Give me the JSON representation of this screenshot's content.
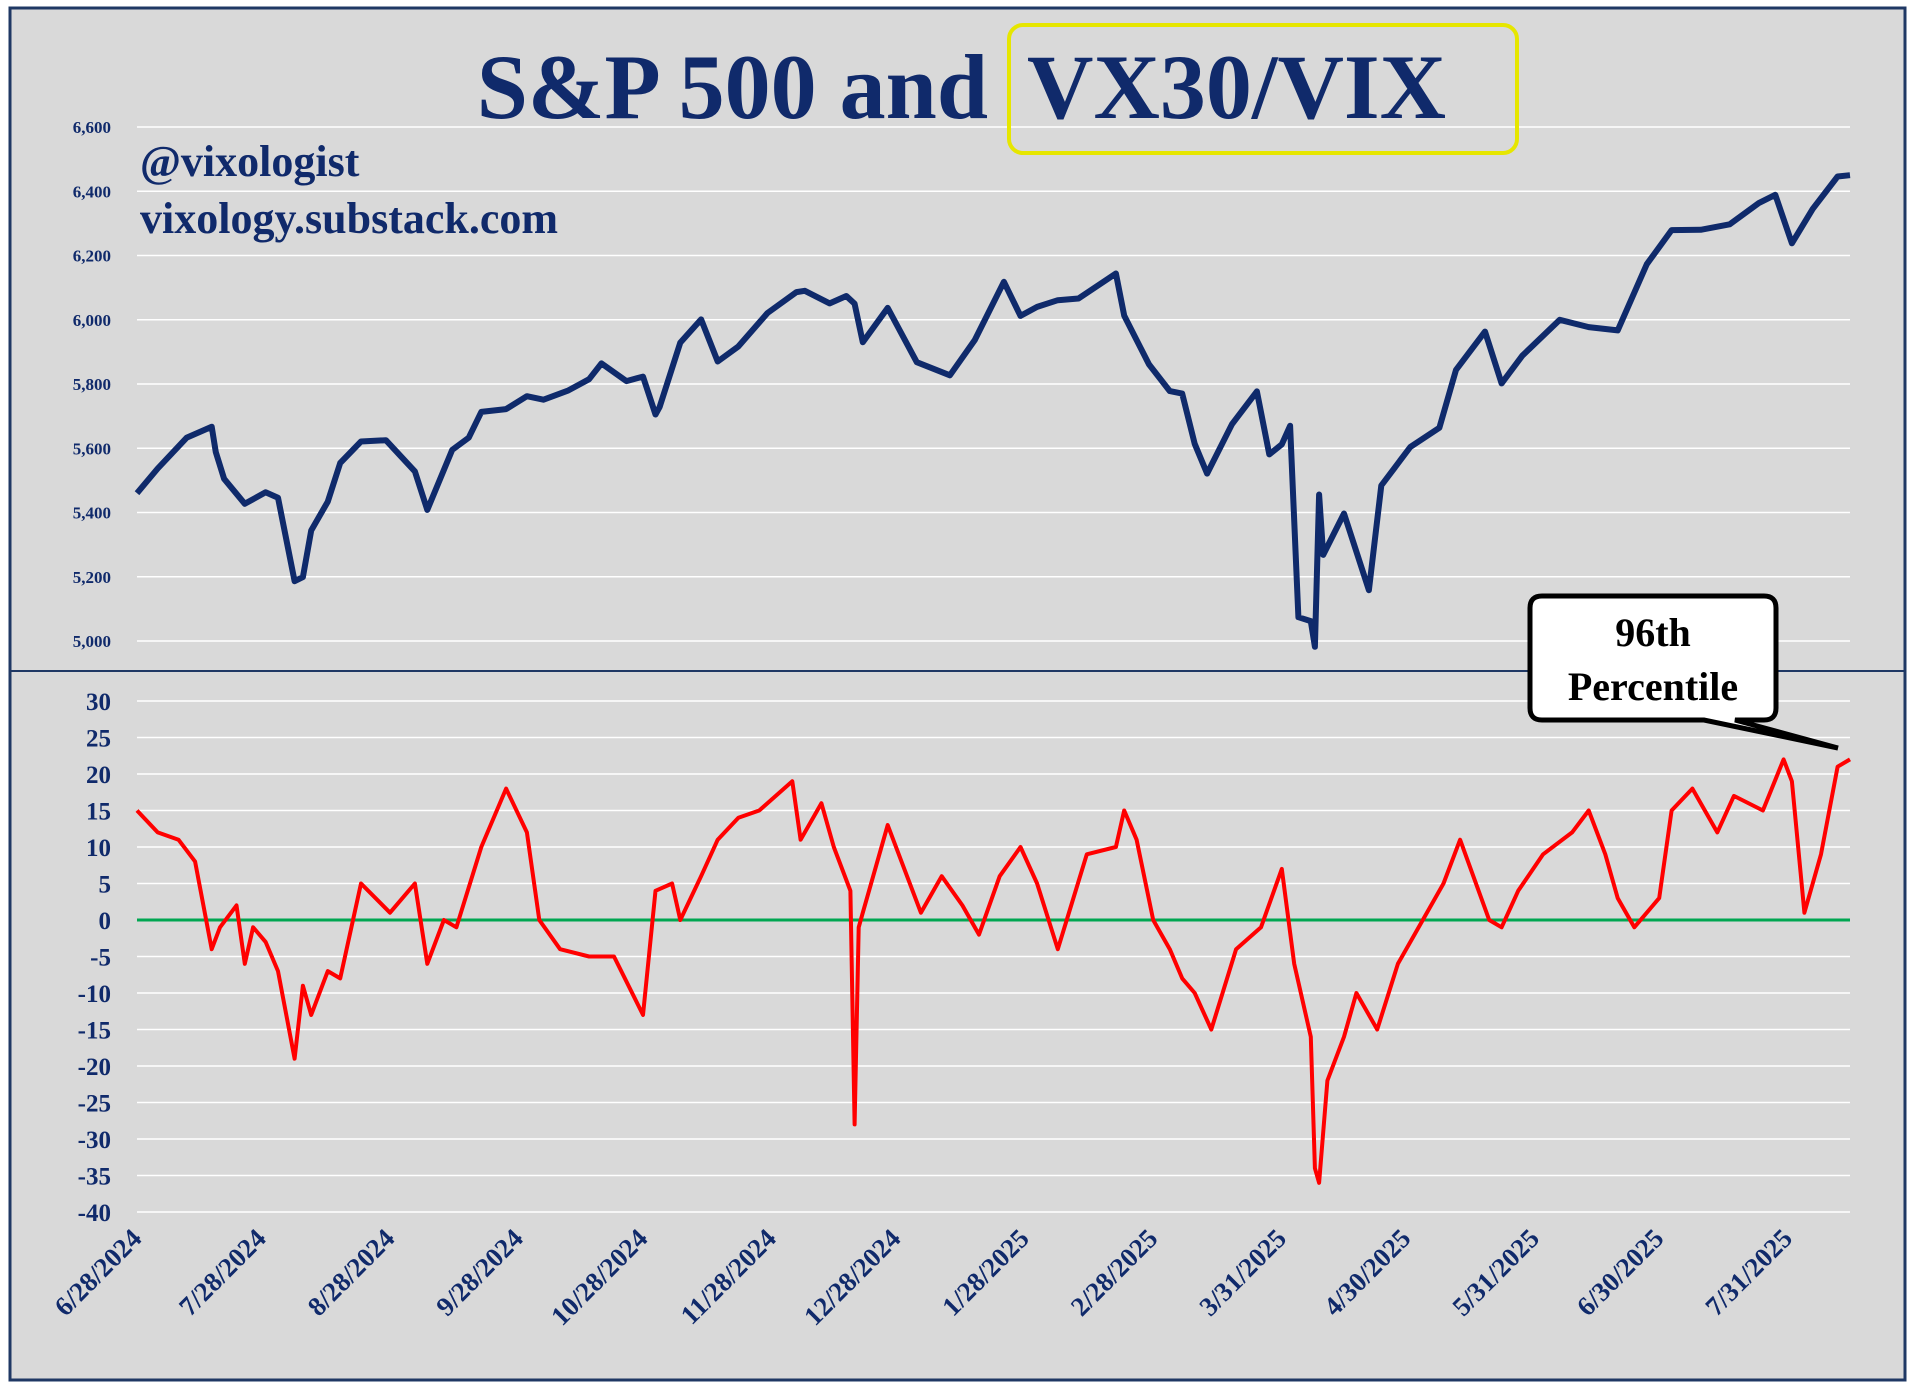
{
  "title": {
    "main": "S&P 500 and ",
    "highlight": "VX30/VIX"
  },
  "attribution": {
    "handle": "@vixologist",
    "site": "vixology.substack.com"
  },
  "callout": {
    "line1": "96th",
    "line2": "Percentile"
  },
  "colors": {
    "background": "#d9d9d9",
    "frame": "#1f3864",
    "title": "#102a6b",
    "spx_line": "#0f2a6b",
    "ratio_line": "#ff0000",
    "zero_line": "#00a651",
    "highlight_box": "#e6e600",
    "grid": "#ffffff"
  },
  "x_axis": {
    "start": "6/28/2024",
    "end": "8/15/2025",
    "tick_labels": [
      "6/28/2024",
      "7/28/2024",
      "8/28/2024",
      "9/28/2024",
      "10/28/2024",
      "11/28/2024",
      "12/28/2024",
      "1/28/2025",
      "2/28/2025",
      "3/31/2025",
      "4/30/2025",
      "5/31/2025",
      "6/30/2025",
      "7/31/2025"
    ]
  },
  "chart_data": [
    {
      "type": "line",
      "series": [
        {
          "color": "#0f2a6b"
        }
      ],
      "ylim": [
        5000,
        6600
      ],
      "y_ticks": [
        "5,000",
        "5,200",
        "5,400",
        "5,600",
        "5,800",
        "6,000",
        "6,200",
        "6,400",
        "6,600"
      ],
      "grid": true,
      "x": [
        "2024-06-28",
        "2024-07-03",
        "2024-07-10",
        "2024-07-16",
        "2024-07-17",
        "2024-07-19",
        "2024-07-24",
        "2024-07-29",
        "2024-08-01",
        "2024-08-05",
        "2024-08-07",
        "2024-08-09",
        "2024-08-13",
        "2024-08-16",
        "2024-08-21",
        "2024-08-27",
        "2024-09-03",
        "2024-09-06",
        "2024-09-12",
        "2024-09-16",
        "2024-09-19",
        "2024-09-25",
        "2024-09-30",
        "2024-10-04",
        "2024-10-10",
        "2024-10-15",
        "2024-10-18",
        "2024-10-24",
        "2024-10-28",
        "2024-10-31",
        "2024-11-01",
        "2024-11-06",
        "2024-11-11",
        "2024-11-15",
        "2024-11-20",
        "2024-11-27",
        "2024-12-04",
        "2024-12-06",
        "2024-12-12",
        "2024-12-16",
        "2024-12-18",
        "2024-12-20",
        "2024-12-26",
        "2025-01-02",
        "2025-01-10",
        "2025-01-16",
        "2025-01-23",
        "2025-01-27",
        "2025-01-31",
        "2025-02-05",
        "2025-02-10",
        "2025-02-19",
        "2025-02-21",
        "2025-02-27",
        "2025-03-04",
        "2025-03-07",
        "2025-03-10",
        "2025-03-13",
        "2025-03-19",
        "2025-03-25",
        "2025-03-28",
        "2025-03-31",
        "2025-04-02",
        "2025-04-04",
        "2025-04-07",
        "2025-04-08",
        "2025-04-09",
        "2025-04-10",
        "2025-04-15",
        "2025-04-21",
        "2025-04-24",
        "2025-05-01",
        "2025-05-08",
        "2025-05-12",
        "2025-05-19",
        "2025-05-23",
        "2025-05-28",
        "2025-06-06",
        "2025-06-13",
        "2025-06-20",
        "2025-06-27",
        "2025-07-03",
        "2025-07-10",
        "2025-07-17",
        "2025-07-24",
        "2025-07-28",
        "2025-08-01",
        "2025-08-06",
        "2025-08-12",
        "2025-08-15"
      ],
      "y": [
        5460,
        5537,
        5633,
        5667,
        5588,
        5505,
        5427,
        5463,
        5446,
        5186,
        5199,
        5344,
        5434,
        5554,
        5621,
        5625,
        5528,
        5408,
        5595,
        5633,
        5713,
        5722,
        5762,
        5751,
        5780,
        5815,
        5864,
        5809,
        5823,
        5705,
        5728,
        5929,
        6001,
        5870,
        5917,
        6021,
        6086,
        6090,
        6051,
        6074,
        6050,
        5930,
        6037,
        5868,
        5827,
        5937,
        6118,
        6012,
        6040,
        6061,
        6066,
        6144,
        6013,
        5861,
        5778,
        5770,
        5614,
        5521,
        5675,
        5777,
        5581,
        5612,
        5670,
        5074,
        5062,
        4982,
        5456,
        5268,
        5397,
        5158,
        5484,
        5604,
        5664,
        5844,
        5963,
        5802,
        5888,
        6000,
        5977,
        5967,
        6173,
        6279,
        6280,
        6297,
        6363,
        6389,
        6238,
        6345,
        6446,
        6450
      ]
    },
    {
      "type": "line",
      "series": [
        {
          "color": "#ff0000"
        }
      ],
      "ylim": [
        -40,
        30
      ],
      "y_ticks": [
        "30",
        "25",
        "20",
        "15",
        "10",
        "5",
        "0",
        "-5",
        "-10",
        "-15",
        "-20",
        "-25",
        "-30",
        "-35",
        "-40"
      ],
      "grid": true,
      "x": [
        "2024-06-28",
        "2024-07-03",
        "2024-07-08",
        "2024-07-12",
        "2024-07-16",
        "2024-07-18",
        "2024-07-22",
        "2024-07-24",
        "2024-07-26",
        "2024-07-29",
        "2024-08-01",
        "2024-08-05",
        "2024-08-07",
        "2024-08-09",
        "2024-08-13",
        "2024-08-16",
        "2024-08-21",
        "2024-08-28",
        "2024-09-03",
        "2024-09-06",
        "2024-09-10",
        "2024-09-13",
        "2024-09-19",
        "2024-09-25",
        "2024-09-30",
        "2024-10-03",
        "2024-10-08",
        "2024-10-15",
        "2024-10-21",
        "2024-10-28",
        "2024-10-31",
        "2024-11-04",
        "2024-11-06",
        "2024-11-11",
        "2024-11-15",
        "2024-11-20",
        "2024-11-25",
        "2024-12-03",
        "2024-12-05",
        "2024-12-10",
        "2024-12-13",
        "2024-12-17",
        "2024-12-18",
        "2024-12-19",
        "2024-12-20",
        "2024-12-26",
        "2024-12-30",
        "2025-01-03",
        "2025-01-08",
        "2025-01-13",
        "2025-01-17",
        "2025-01-22",
        "2025-01-27",
        "2025-01-31",
        "2025-02-05",
        "2025-02-12",
        "2025-02-19",
        "2025-02-21",
        "2025-02-24",
        "2025-02-28",
        "2025-03-04",
        "2025-03-07",
        "2025-03-10",
        "2025-03-14",
        "2025-03-20",
        "2025-03-26",
        "2025-03-31",
        "2025-04-03",
        "2025-04-07",
        "2025-04-08",
        "2025-04-09",
        "2025-04-11",
        "2025-04-15",
        "2025-04-18",
        "2025-04-23",
        "2025-04-28",
        "2025-05-02",
        "2025-05-09",
        "2025-05-13",
        "2025-05-20",
        "2025-05-23",
        "2025-05-27",
        "2025-06-02",
        "2025-06-09",
        "2025-06-13",
        "2025-06-17",
        "2025-06-20",
        "2025-06-24",
        "2025-06-30",
        "2025-07-03",
        "2025-07-08",
        "2025-07-14",
        "2025-07-18",
        "2025-07-25",
        "2025-07-30",
        "2025-08-01",
        "2025-08-04",
        "2025-08-08",
        "2025-08-12",
        "2025-08-15"
      ],
      "y": [
        15,
        12,
        11,
        8,
        -4,
        -1,
        2,
        -6,
        -1,
        -3,
        -7,
        -19,
        -9,
        -13,
        -7,
        -8,
        5,
        1,
        5,
        -6,
        0,
        -1,
        10,
        18,
        12,
        0,
        -4,
        -5,
        -5,
        -13,
        4,
        5,
        0,
        6,
        11,
        14,
        15,
        19,
        11,
        16,
        10,
        4,
        -28,
        -1,
        1,
        13,
        7,
        1,
        6,
        2,
        -2,
        6,
        10,
        5,
        -4,
        9,
        10,
        15,
        11,
        0,
        -4,
        -8,
        -10,
        -15,
        -4,
        -1,
        7,
        -6,
        -16,
        -34,
        -36,
        -22,
        -16,
        -10,
        -15,
        -6,
        -2,
        5,
        11,
        0,
        -1,
        4,
        9,
        12,
        15,
        9,
        3,
        -1,
        3,
        15,
        18,
        12,
        17,
        15,
        22,
        19,
        1,
        9,
        21,
        22
      ]
    }
  ]
}
